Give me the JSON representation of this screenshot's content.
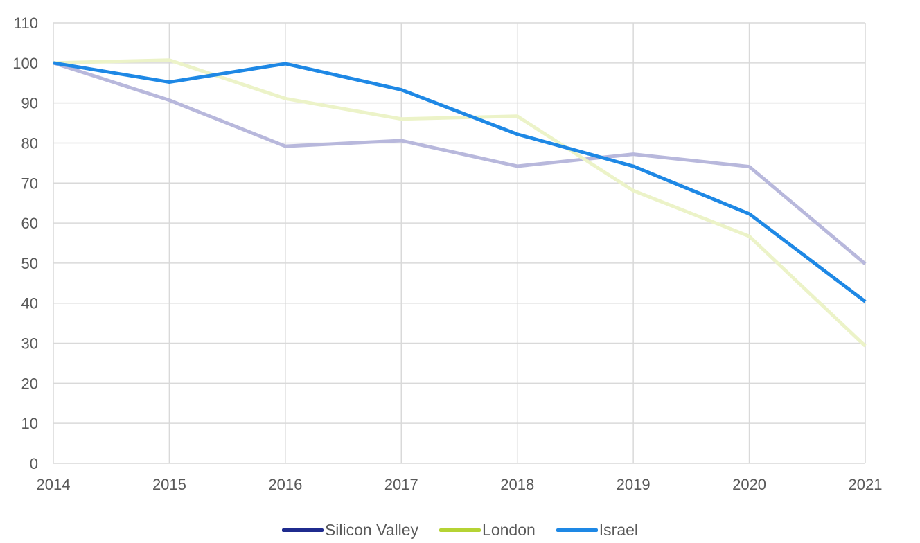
{
  "chart_data": {
    "type": "line",
    "x": [
      "2014",
      "2015",
      "2016",
      "2017",
      "2018",
      "2019",
      "2020",
      "2021"
    ],
    "ylim": [
      0,
      110
    ],
    "yticks": [
      0,
      10,
      20,
      30,
      40,
      50,
      60,
      70,
      80,
      90,
      100,
      110
    ],
    "grid": true,
    "legend_position": "bottom",
    "title": "",
    "xlabel": "",
    "ylabel": "",
    "series": [
      {
        "name": "Silicon Valley",
        "legend_color": "#1f2b8e",
        "line_color": "#b8b8dc",
        "values": [
          100,
          90.7,
          79.2,
          80.6,
          74.2,
          77.2,
          74.1,
          49.8
        ]
      },
      {
        "name": "London",
        "legend_color": "#b5d334",
        "line_color": "#ecf3c8",
        "values": [
          100,
          100.7,
          91.1,
          86.0,
          86.7,
          68.1,
          56.7,
          29.3
        ]
      },
      {
        "name": "Israel",
        "legend_color": "#1e88e5",
        "line_color": "#1e88e5",
        "values": [
          100,
          95.2,
          99.8,
          93.3,
          82.2,
          74.2,
          62.3,
          40.4
        ]
      }
    ]
  }
}
